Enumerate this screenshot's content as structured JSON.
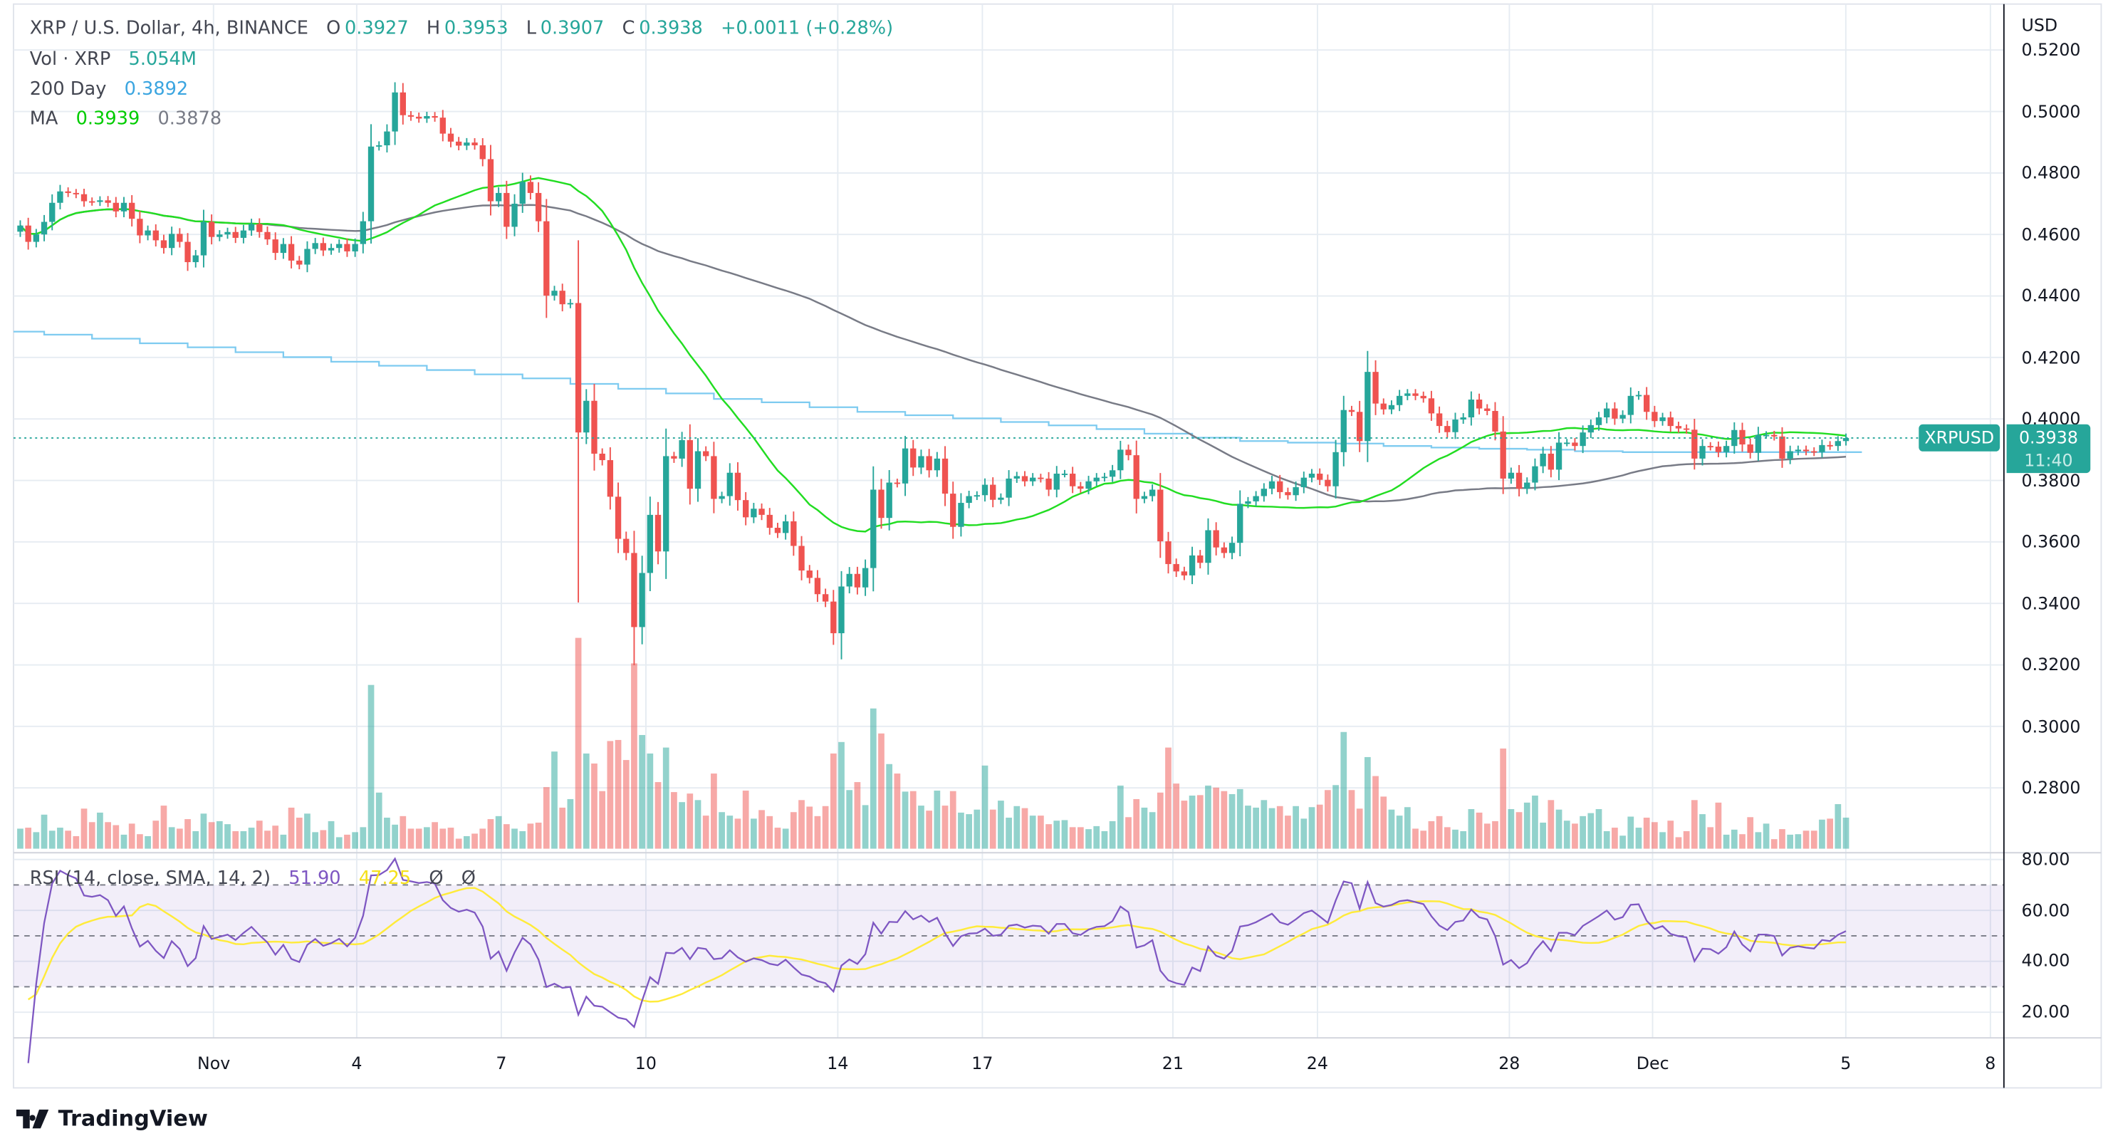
{
  "header": {
    "symbol": "XRP / U.S. Dollar, 4h, BINANCE",
    "o_label": "O",
    "o": "0.3927",
    "h_label": "H",
    "h": "0.3953",
    "l_label": "L",
    "l": "0.3907",
    "c_label": "C",
    "c": "0.3938",
    "change": "+0.0011 (+0.28%)"
  },
  "legend": {
    "vol_label": "Vol · XRP",
    "vol_value": "5.054M",
    "day200_label": "200 Day",
    "day200_value": "0.3892",
    "ma_label": "MA",
    "ma_fast": "0.3939",
    "ma_slow": "0.3878"
  },
  "rsi_legend": {
    "label": "RSI (14, close, SMA, 14, 2)",
    "rsi": "51.90",
    "sma": "47.25",
    "hidden_1": "Ø",
    "hidden_2": "Ø"
  },
  "price_axis": {
    "currency": "USD",
    "ticks": [
      "0.5200",
      "0.5000",
      "0.4800",
      "0.4600",
      "0.4400",
      "0.4200",
      "0.4000",
      "0.3800",
      "0.3600",
      "0.3400",
      "0.3200",
      "0.3000",
      "0.2800"
    ]
  },
  "rsi_axis": {
    "ticks": [
      "80.00",
      "60.00",
      "40.00",
      "20.00"
    ]
  },
  "time_axis": {
    "ticks": [
      "Nov",
      "4",
      "7",
      "10",
      "14",
      "17",
      "21",
      "24",
      "28",
      "Dec",
      "5",
      "8"
    ]
  },
  "last_price": {
    "symbol": "XRPUSD",
    "price": "0.3938",
    "countdown": "11:40"
  },
  "brand": "TradingView",
  "colors": {
    "up": "#26a69a",
    "down": "#ef5350",
    "ma_fast": "#22dd22",
    "ma_slow": "#787b86",
    "day200": "#7ecbf0",
    "rsi": "#7e57c2",
    "rsi_sma": "#ffeb3b"
  },
  "chart_data": {
    "type": "candlestick",
    "interval": "4h",
    "ylim": [
      0.27,
      0.525
    ],
    "rsi_ylim": [
      10,
      85
    ],
    "rsi_bands": [
      30,
      50,
      70
    ],
    "close": [
      0.4629,
      0.4576,
      0.46,
      0.4641,
      0.4703,
      0.474,
      0.4735,
      0.4731,
      0.4708,
      0.4706,
      0.4711,
      0.4703,
      0.4675,
      0.4703,
      0.4651,
      0.4597,
      0.4613,
      0.4581,
      0.4556,
      0.4602,
      0.4576,
      0.451,
      0.4532,
      0.4641,
      0.4592,
      0.46,
      0.4608,
      0.4589,
      0.4613,
      0.4634,
      0.4608,
      0.4584,
      0.454,
      0.4569,
      0.4515,
      0.4502,
      0.4553,
      0.4572,
      0.4548,
      0.4556,
      0.4569,
      0.4545,
      0.4569,
      0.4643,
      0.4886,
      0.489,
      0.4935,
      0.5062,
      0.4988,
      0.4983,
      0.4977,
      0.4985,
      0.498,
      0.4928,
      0.4902,
      0.4889,
      0.4899,
      0.489,
      0.4845,
      0.4708,
      0.4735,
      0.4625,
      0.47,
      0.4771,
      0.4735,
      0.4643,
      0.4401,
      0.4417,
      0.4373,
      0.4377,
      0.3956,
      0.4059,
      0.3887,
      0.3866,
      0.3747,
      0.361,
      0.3564,
      0.3323,
      0.3499,
      0.3688,
      0.3569,
      0.3879,
      0.3871,
      0.3931,
      0.3773,
      0.3895,
      0.3879,
      0.374,
      0.3749,
      0.3825,
      0.3736,
      0.368,
      0.3708,
      0.3688,
      0.3646,
      0.3629,
      0.3667,
      0.3587,
      0.3507,
      0.3483,
      0.343,
      0.3406,
      0.3303,
      0.3455,
      0.3496,
      0.3452,
      0.3515,
      0.377,
      0.3678,
      0.3793,
      0.379,
      0.3904,
      0.3842,
      0.3879,
      0.3833,
      0.3871,
      0.3757,
      0.3649,
      0.3727,
      0.3749,
      0.3752,
      0.3786,
      0.3737,
      0.3744,
      0.3806,
      0.3814,
      0.3797,
      0.3809,
      0.3806,
      0.377,
      0.3822,
      0.3822,
      0.3781,
      0.3773,
      0.3797,
      0.3809,
      0.3812,
      0.3833,
      0.39,
      0.3882,
      0.374,
      0.3749,
      0.377,
      0.3602,
      0.3528,
      0.3504,
      0.3491,
      0.3556,
      0.3532,
      0.3638,
      0.3582,
      0.3564,
      0.3597,
      0.3724,
      0.3732,
      0.3749,
      0.3773,
      0.3797,
      0.3762,
      0.3752,
      0.3778,
      0.3809,
      0.3822,
      0.3802,
      0.3781,
      0.3892,
      0.4029,
      0.4023,
      0.3928,
      0.4153,
      0.405,
      0.4031,
      0.4045,
      0.4075,
      0.4083,
      0.4075,
      0.4067,
      0.4018,
      0.3977,
      0.3957,
      0.3998,
      0.4005,
      0.4063,
      0.4034,
      0.4026,
      0.3959,
      0.3806,
      0.3825,
      0.3773,
      0.3793,
      0.3846,
      0.3887,
      0.3835,
      0.3923,
      0.3923,
      0.3912,
      0.3956,
      0.398,
      0.4005,
      0.4034,
      0.4001,
      0.4013,
      0.4075,
      0.4078,
      0.4023,
      0.3993,
      0.4005,
      0.3977,
      0.3969,
      0.3965,
      0.3871,
      0.3912,
      0.391,
      0.3892,
      0.3912,
      0.3964,
      0.3917,
      0.389,
      0.3948,
      0.3948,
      0.3943,
      0.3871,
      0.3895,
      0.39,
      0.3895,
      0.3892,
      0.3915,
      0.3912,
      0.3928,
      0.3938
    ],
    "volume_m": [
      3.26,
      3.42,
      2.69,
      5.54,
      2.93,
      3.42,
      2.93,
      2.04,
      6.52,
      4.32,
      5.87,
      4.32,
      3.83,
      2.28,
      4.08,
      2.36,
      2.04,
      4.56,
      7.01,
      3.5,
      3.26,
      4.81,
      2.85,
      5.71,
      4.32,
      4.48,
      3.99,
      2.85,
      2.85,
      3.42,
      4.56,
      2.93,
      3.75,
      2.28,
      6.68,
      5.05,
      5.71,
      2.69,
      3.02,
      4.48,
      1.87,
      2.28,
      2.69,
      3.5,
      26.65,
      9.13,
      5.05,
      3.91,
      5.3,
      3.26,
      3.26,
      3.5,
      4.32,
      3.26,
      3.42,
      1.63,
      2.04,
      2.45,
      3.26,
      4.81,
      5.3,
      3.99,
      3.26,
      2.85,
      4.08,
      4.24,
      10.02,
      15.81,
      6.68,
      8.07,
      34.31,
      15.49,
      13.86,
      9.37,
      17.52,
      17.69,
      14.43,
      30.16,
      18.5,
      15.49,
      10.84,
      16.46,
      9.21,
      7.58,
      8.97,
      7.91,
      5.38,
      12.23,
      5.95,
      5.38,
      4.89,
      9.45,
      4.89,
      6.28,
      5.3,
      3.42,
      3.26,
      5.95,
      7.91,
      6.85,
      5.3,
      6.93,
      15.49,
      17.36,
      9.54,
      10.84,
      7.09,
      22.82,
      18.75,
      13.77,
      12.23,
      9.29,
      9.37,
      7.01,
      6.19,
      9.45,
      7.01,
      9.37,
      5.87,
      5.62,
      6.36,
      13.53,
      6.36,
      7.82,
      5.05,
      6.93,
      6.6,
      5.38,
      5.38,
      3.99,
      4.56,
      4.65,
      3.5,
      3.5,
      3.18,
      3.67,
      2.85,
      4.48,
      10.27,
      5.13,
      8.07,
      6.68,
      5.95,
      9.13,
      16.46,
      10.6,
      7.82,
      8.64,
      8.72,
      10.27,
      9.94,
      9.37,
      8.88,
      9.7,
      7.01,
      6.68,
      7.91,
      6.6,
      6.93,
      5.38,
      6.93,
      4.89,
      6.76,
      7.17,
      9.54,
      10.35,
      18.99,
      9.54,
      6.52,
      14.91,
      11.82,
      8.48,
      6.36,
      5.38,
      6.76,
      3.26,
      2.93,
      4.48,
      5.3,
      3.5,
      3.1,
      2.85,
      6.44,
      5.87,
      4.08,
      4.48,
      16.3,
      6.44,
      5.95,
      7.5,
      8.64,
      4.24,
      7.91,
      6.36,
      4.56,
      4.08,
      5.3,
      5.79,
      6.44,
      2.85,
      3.42,
      2.12,
      5.22,
      3.42,
      5.05,
      4.32,
      2.69,
      4.56,
      1.87,
      2.85,
      7.91,
      5.62,
      3.5,
      7.5,
      2.28,
      3.1,
      2.36,
      5.13,
      2.69,
      4.08,
      1.55,
      3.18,
      2.28,
      2.36,
      2.93,
      2.93,
      4.73,
      4.89,
      7.25,
      5.054
    ],
    "wick_extremes": [
      {
        "index": 70,
        "high": 0.4581,
        "low": 0.3403
      },
      {
        "index": 77,
        "low": 0.3199
      },
      {
        "index": 103,
        "low": 0.3218
      },
      {
        "index": 47,
        "high": 0.5095
      }
    ],
    "day200_daily": [
      0.4284,
      0.4274,
      0.4261,
      0.4246,
      0.4233,
      0.4217,
      0.4201,
      0.4186,
      0.4173,
      0.4159,
      0.4145,
      0.4132,
      0.4114,
      0.4098,
      0.4083,
      0.4065,
      0.4054,
      0.4038,
      0.4023,
      0.4012,
      0.4002,
      0.399,
      0.3979,
      0.3967,
      0.3952,
      0.3939,
      0.3928,
      0.3923,
      0.392,
      0.3912,
      0.3907,
      0.3903,
      0.39,
      0.3895,
      0.3892,
      0.3892,
      0.3892,
      0.3892,
      0.3892
    ]
  }
}
